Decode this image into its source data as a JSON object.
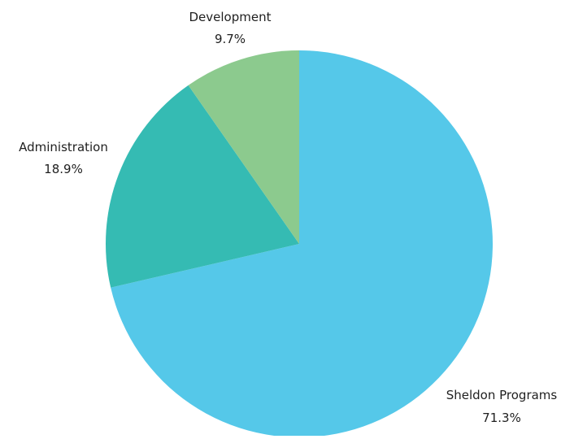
{
  "chart_data": {
    "type": "pie",
    "title": "",
    "start_angle_deg": 0,
    "direction": "clockwise",
    "slices": [
      {
        "label": "Sheldon Programs",
        "value": 71.3,
        "value_label": "71.3%",
        "color": "#55c8e9"
      },
      {
        "label": "Administration",
        "value": 18.9,
        "value_label": "18.9%",
        "color": "#35bbb3"
      },
      {
        "label": "Development",
        "value": 9.7,
        "value_label": "9.7%",
        "color": "#8cca8e"
      }
    ]
  }
}
